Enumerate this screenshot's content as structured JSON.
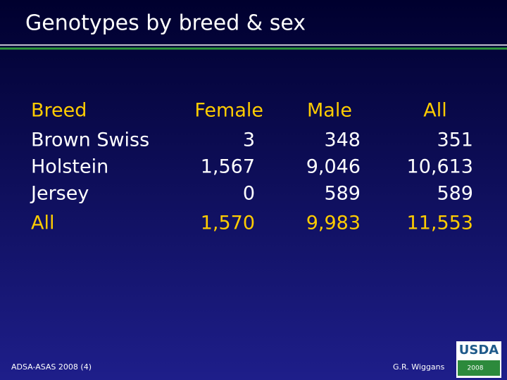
{
  "header": {
    "title": "Genotypes by breed & sex"
  },
  "table": {
    "columns": [
      "Breed",
      "Female",
      "Male",
      "All"
    ],
    "rows": [
      [
        "Brown Swiss",
        "3",
        "348",
        "351"
      ],
      [
        "Holstein",
        "1,567",
        "9,046",
        "10,613"
      ],
      [
        "Jersey",
        "0",
        "589",
        "589"
      ],
      [
        "All",
        "1,570",
        "9,983",
        "11,553"
      ]
    ]
  },
  "footer": {
    "left": "ADSA-ASAS 2008 (4)",
    "right": "G.R. Wiggans",
    "logo": "USDA",
    "logo_year": "2008"
  }
}
